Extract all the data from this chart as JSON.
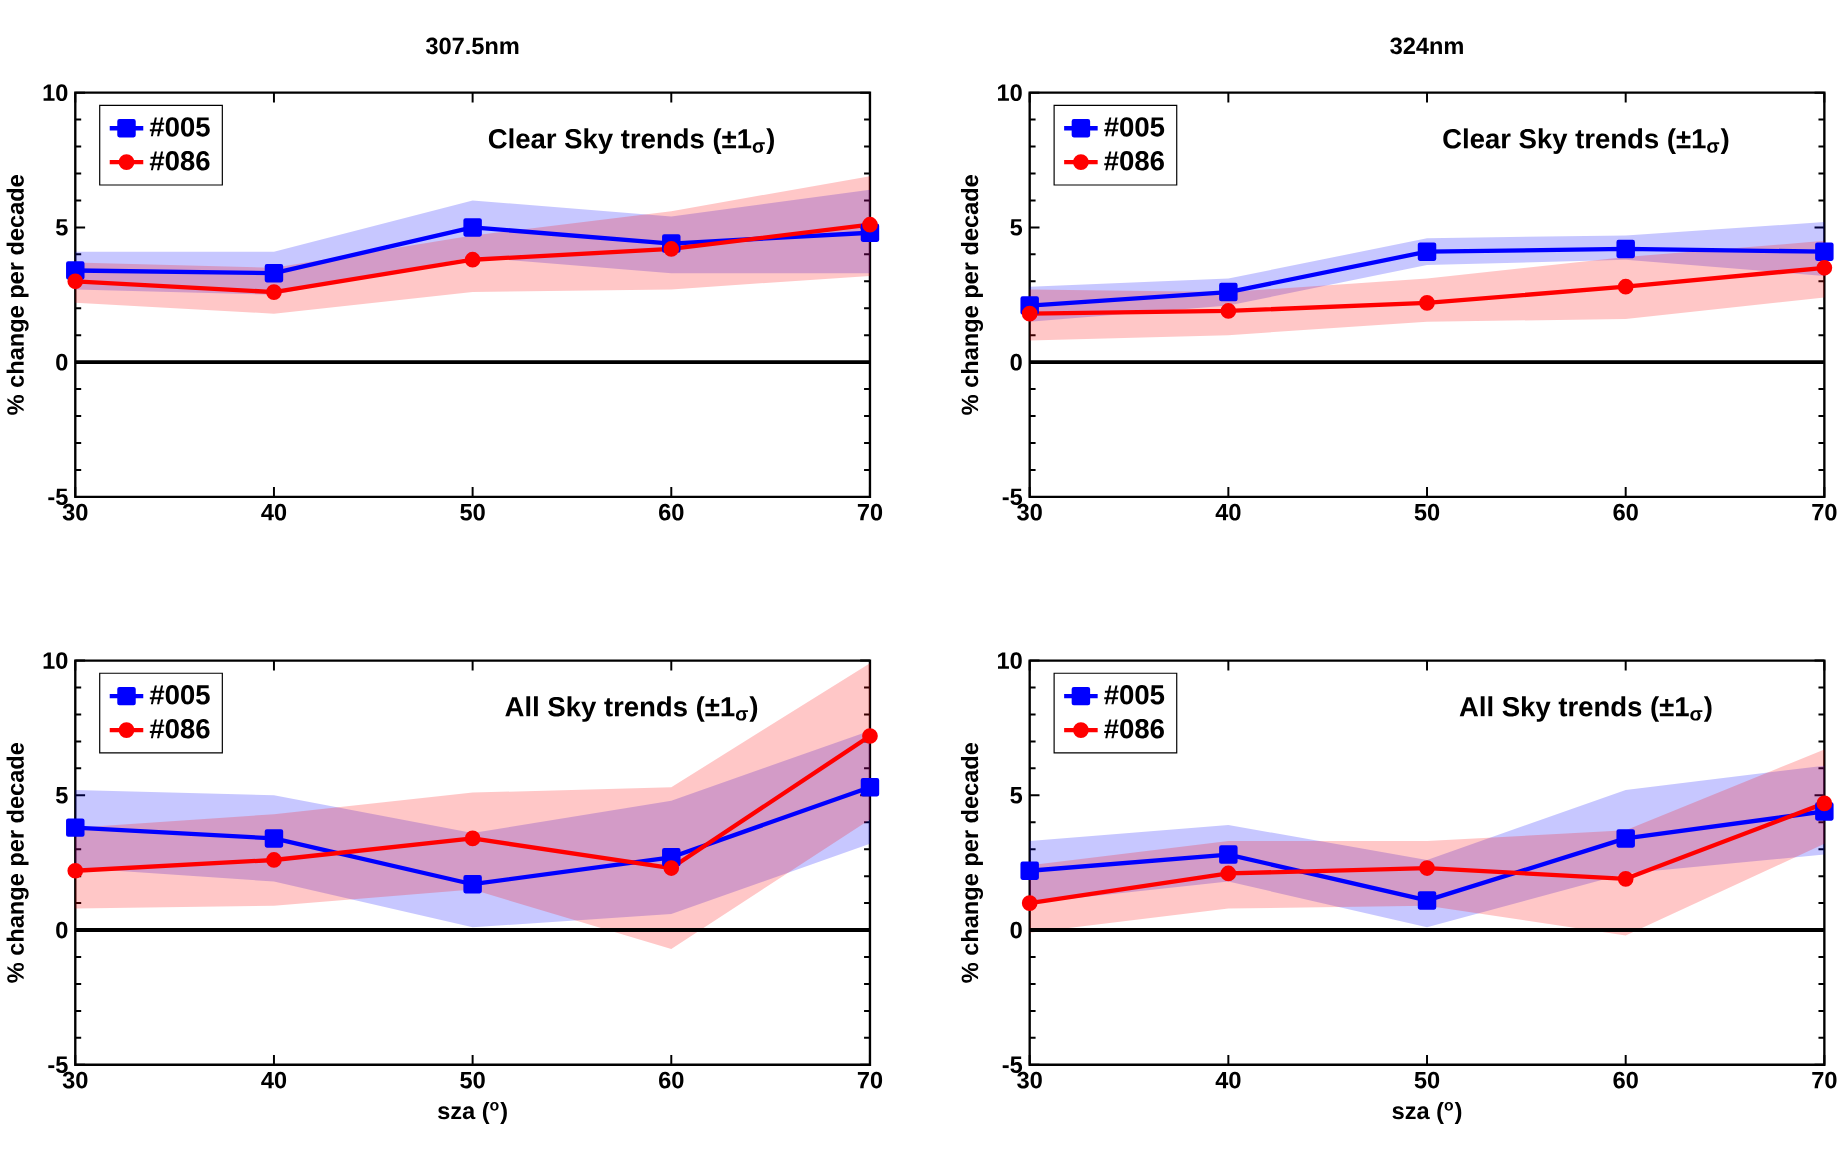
{
  "chart_data": [
    {
      "type": "line",
      "title": "307.5nm",
      "ylabel": "% change per decade",
      "x": [
        30,
        40,
        50,
        60,
        70
      ],
      "xlim": [
        30,
        70
      ],
      "xticks": [
        30,
        40,
        50,
        60,
        70
      ],
      "ylim": [
        -5,
        10
      ],
      "yticks": [
        -5,
        0,
        5,
        10
      ],
      "legend": "top left",
      "annotations": [
        "Clear Sky trends (±1$_{σ}$)"
      ],
      "ref_lines": [
        {
          "axis": "y",
          "value": 0,
          "color": "#000000"
        }
      ],
      "series": [
        {
          "name": "#005",
          "color": "#0000ff",
          "marker": "square",
          "values": [
            3.4,
            3.3,
            5.0,
            4.4,
            4.8
          ],
          "lower": [
            2.7,
            2.5,
            3.9,
            3.3,
            3.3
          ],
          "upper": [
            4.1,
            4.1,
            6.0,
            5.4,
            6.4
          ]
        },
        {
          "name": "#086",
          "color": "#ff0000",
          "marker": "circle",
          "values": [
            3.0,
            2.6,
            3.8,
            4.2,
            5.1
          ],
          "lower": [
            2.2,
            1.8,
            2.6,
            2.7,
            3.2
          ],
          "upper": [
            3.7,
            3.5,
            4.7,
            5.6,
            6.9
          ]
        }
      ]
    },
    {
      "type": "line",
      "title": "324nm",
      "ylabel": "% change per decade",
      "x": [
        30,
        40,
        50,
        60,
        70
      ],
      "xlim": [
        30,
        70
      ],
      "xticks": [
        30,
        40,
        50,
        60,
        70
      ],
      "ylim": [
        -5,
        10
      ],
      "yticks": [
        -5,
        0,
        5,
        10
      ],
      "legend": "top left",
      "annotations": [
        "Clear Sky trends (±1$_{σ}$)"
      ],
      "ref_lines": [
        {
          "axis": "y",
          "value": 0,
          "color": "#000000"
        }
      ],
      "series": [
        {
          "name": "#005",
          "color": "#0000ff",
          "marker": "square",
          "values": [
            2.1,
            2.6,
            4.1,
            4.2,
            4.1
          ],
          "lower": [
            1.5,
            2.1,
            3.6,
            3.8,
            3.2
          ],
          "upper": [
            2.8,
            3.1,
            4.6,
            4.7,
            5.2
          ]
        },
        {
          "name": "#086",
          "color": "#ff0000",
          "marker": "circle",
          "values": [
            1.8,
            1.9,
            2.2,
            2.8,
            3.5
          ],
          "lower": [
            0.8,
            1.0,
            1.5,
            1.6,
            2.4
          ],
          "upper": [
            2.7,
            2.6,
            3.1,
            3.9,
            4.5
          ]
        }
      ]
    },
    {
      "type": "line",
      "xlabel": "sza ($^{o}$)",
      "ylabel": "% change per decade",
      "x": [
        30,
        40,
        50,
        60,
        70
      ],
      "xlim": [
        30,
        70
      ],
      "xticks": [
        30,
        40,
        50,
        60,
        70
      ],
      "ylim": [
        -5,
        10
      ],
      "yticks": [
        -5,
        0,
        5,
        10
      ],
      "legend": "top left",
      "annotations": [
        "All Sky trends (±1$_{σ}$)"
      ],
      "ref_lines": [
        {
          "axis": "y",
          "value": 0,
          "color": "#000000"
        }
      ],
      "series": [
        {
          "name": "#005",
          "color": "#0000ff",
          "marker": "square",
          "values": [
            3.8,
            3.4,
            1.7,
            2.7,
            5.3
          ],
          "lower": [
            2.3,
            1.8,
            0.1,
            0.6,
            3.2
          ],
          "upper": [
            5.2,
            5.0,
            3.6,
            4.8,
            7.4
          ]
        },
        {
          "name": "#086",
          "color": "#ff0000",
          "marker": "circle",
          "values": [
            2.2,
            2.6,
            3.4,
            2.3,
            7.2
          ],
          "lower": [
            0.8,
            0.9,
            1.5,
            -0.7,
            4.1
          ],
          "upper": [
            3.8,
            4.3,
            5.1,
            5.3,
            9.9
          ]
        }
      ]
    },
    {
      "type": "line",
      "xlabel": "sza ($^{o}$)",
      "ylabel": "% change per decade",
      "x": [
        30,
        40,
        50,
        60,
        70
      ],
      "xlim": [
        30,
        70
      ],
      "xticks": [
        30,
        40,
        50,
        60,
        70
      ],
      "ylim": [
        -5,
        10
      ],
      "yticks": [
        -5,
        0,
        5,
        10
      ],
      "legend": "top left",
      "annotations": [
        "All Sky trends (±1$_{σ}$)"
      ],
      "ref_lines": [
        {
          "axis": "y",
          "value": 0,
          "color": "#000000"
        }
      ],
      "series": [
        {
          "name": "#005",
          "color": "#0000ff",
          "marker": "square",
          "values": [
            2.2,
            2.8,
            1.1,
            3.4,
            4.4
          ],
          "lower": [
            1.0,
            1.8,
            0.1,
            2.1,
            2.8
          ],
          "upper": [
            3.3,
            3.9,
            2.6,
            5.2,
            6.1
          ]
        },
        {
          "name": "#086",
          "color": "#ff0000",
          "marker": "circle",
          "values": [
            1.0,
            2.1,
            2.3,
            1.9,
            4.7
          ],
          "lower": [
            -0.1,
            0.8,
            0.9,
            -0.2,
            3.2
          ],
          "upper": [
            2.4,
            3.3,
            3.3,
            3.7,
            6.7
          ]
        }
      ]
    }
  ]
}
